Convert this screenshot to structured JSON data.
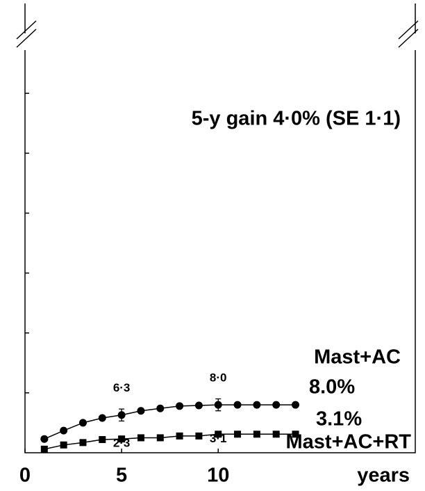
{
  "chart_data": {
    "type": "line",
    "annotation": "5-y gain 4·0% (SE 1·1)",
    "x_label": "years",
    "x": [
      1,
      2,
      3,
      4,
      5,
      6,
      7,
      8,
      9,
      10,
      11,
      12,
      13,
      14
    ],
    "series": [
      {
        "name": "Mast+AC",
        "end_label": "8.0%",
        "marker": "circle",
        "color": "#000000",
        "values": [
          2.3,
          3.7,
          5.0,
          5.8,
          6.3,
          7.0,
          7.4,
          7.8,
          7.9,
          8.0,
          8.0,
          8.0,
          8.0,
          8.0
        ],
        "errors": [
          null,
          null,
          null,
          null,
          1.0,
          null,
          null,
          null,
          null,
          1.0,
          null,
          null,
          null,
          null
        ],
        "value_labels": [
          null,
          null,
          null,
          null,
          "6·3",
          null,
          null,
          null,
          null,
          "8·0",
          null,
          null,
          null,
          null
        ]
      },
      {
        "name": "Mast+AC+RT",
        "end_label": "3.1%",
        "marker": "square",
        "color": "#000000",
        "values": [
          0.6,
          1.3,
          1.7,
          2.2,
          2.3,
          2.5,
          2.5,
          2.8,
          2.8,
          3.1,
          3.1,
          3.1,
          3.1,
          3.1
        ],
        "value_labels": [
          null,
          null,
          null,
          null,
          "2·3",
          null,
          null,
          null,
          null,
          "3·1",
          null,
          null,
          null,
          null
        ]
      }
    ],
    "xlim": [
      0,
      20.2
    ],
    "xticks": [
      0,
      5,
      10
    ],
    "ylim": [
      0,
      75
    ],
    "yticks": [
      10,
      20,
      30,
      40,
      50,
      60
    ]
  }
}
